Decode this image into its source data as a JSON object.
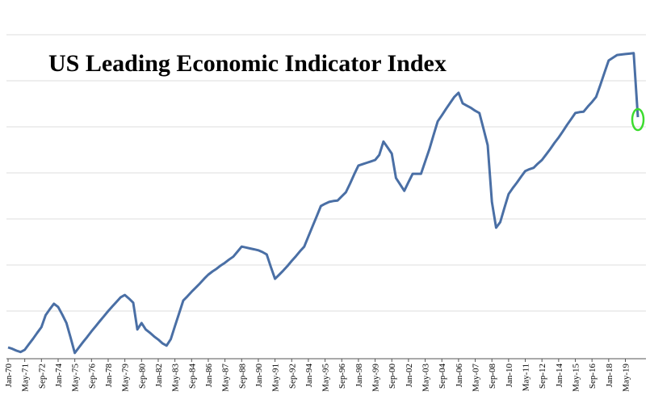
{
  "chart_data": {
    "type": "line",
    "title": "US Leading Economic Indicator Index",
    "categories": [
      "Jan-70",
      null,
      null,
      null,
      "May-71",
      null,
      null,
      null,
      "Sep-72",
      null,
      null,
      null,
      "Jan-74",
      null,
      null,
      null,
      "May-75",
      null,
      null,
      null,
      "Sep-76",
      null,
      null,
      null,
      "Jan-78",
      null,
      null,
      null,
      "May-79",
      null,
      null,
      null,
      "Sep-80",
      null,
      null,
      null,
      "Jan-82",
      null,
      null,
      null,
      "May-83",
      null,
      null,
      null,
      "Sep-84",
      null,
      null,
      null,
      "Jan-86",
      null,
      null,
      null,
      "May-87",
      null,
      null,
      null,
      "Sep-88",
      null,
      null,
      null,
      "Jan-90",
      null,
      null,
      null,
      "May-91",
      null,
      null,
      null,
      "Sep-92",
      null,
      null,
      null,
      "Jan-94",
      null,
      null,
      null,
      "May-95",
      null,
      null,
      null,
      "Sep-96",
      null,
      null,
      null,
      "Jan-98",
      null,
      null,
      null,
      "May-99",
      null,
      null,
      null,
      "Sep-00",
      null,
      null,
      null,
      "Jan-02",
      null,
      null,
      null,
      "May-03",
      null,
      null,
      null,
      "Sep-04",
      null,
      null,
      null,
      "Jan-06",
      null,
      null,
      null,
      "May-07",
      null,
      null,
      null,
      "Sep-08",
      null,
      null,
      null,
      "Jan-10",
      null,
      null,
      null,
      "May-11",
      null,
      null,
      null,
      "Sep-12",
      null,
      null,
      null,
      "Jan-14",
      null,
      null,
      null,
      "May-15",
      null,
      null,
      null,
      "Sep-16",
      null,
      null,
      null,
      "Jan-18",
      null,
      null,
      null,
      "May-19",
      null,
      null,
      null
    ],
    "values": [
      0.21,
      0.18,
      0.14,
      0.11,
      0.16,
      0.28,
      0.4,
      0.53,
      0.65,
      0.91,
      1.04,
      1.16,
      1.09,
      0.92,
      0.74,
      0.42,
      0.09,
      0.21,
      0.33,
      0.44,
      0.56,
      0.67,
      0.78,
      0.89,
      1.0,
      1.1,
      1.2,
      1.3,
      1.35,
      1.27,
      1.18,
      0.6,
      0.74,
      0.6,
      0.53,
      0.45,
      0.38,
      0.3,
      0.25,
      0.39,
      0.67,
      0.95,
      1.23,
      1.32,
      1.42,
      1.51,
      1.6,
      1.7,
      1.79,
      1.86,
      1.92,
      1.99,
      2.05,
      2.12,
      2.18,
      2.29,
      2.4,
      2.38,
      2.36,
      2.34,
      2.32,
      2.28,
      2.23,
      1.96,
      1.7,
      1.79,
      1.88,
      1.98,
      2.09,
      2.19,
      2.3,
      2.4,
      2.62,
      2.84,
      3.06,
      3.28,
      3.33,
      3.37,
      3.39,
      3.4,
      3.49,
      3.58,
      3.77,
      3.97,
      4.16,
      4.19,
      4.22,
      4.25,
      4.28,
      4.39,
      4.68,
      4.55,
      4.42,
      3.89,
      3.75,
      3.61,
      3.8,
      3.98,
      3.98,
      3.98,
      4.25,
      4.51,
      4.82,
      5.12,
      5.25,
      5.39,
      5.52,
      5.65,
      5.74,
      5.51,
      5.46,
      5.41,
      5.35,
      5.3,
      4.95,
      4.6,
      3.37,
      2.81,
      2.93,
      3.24,
      3.54,
      3.67,
      3.79,
      3.92,
      4.04,
      4.08,
      4.11,
      4.2,
      4.28,
      4.4,
      4.52,
      4.65,
      4.77,
      4.9,
      5.04,
      5.17,
      5.3,
      5.32,
      5.33,
      5.44,
      5.54,
      5.65,
      5.91,
      6.18,
      6.44,
      6.5,
      6.56,
      6.57,
      6.58,
      6.59,
      6.6,
      5.21
    ],
    "color": "#4a6fa5",
    "highlight_color": "#3ddc2f",
    "ylim": [
      0,
      7
    ],
    "yticks": [
      1,
      2,
      3,
      4,
      5,
      6,
      7
    ],
    "grid": true
  }
}
